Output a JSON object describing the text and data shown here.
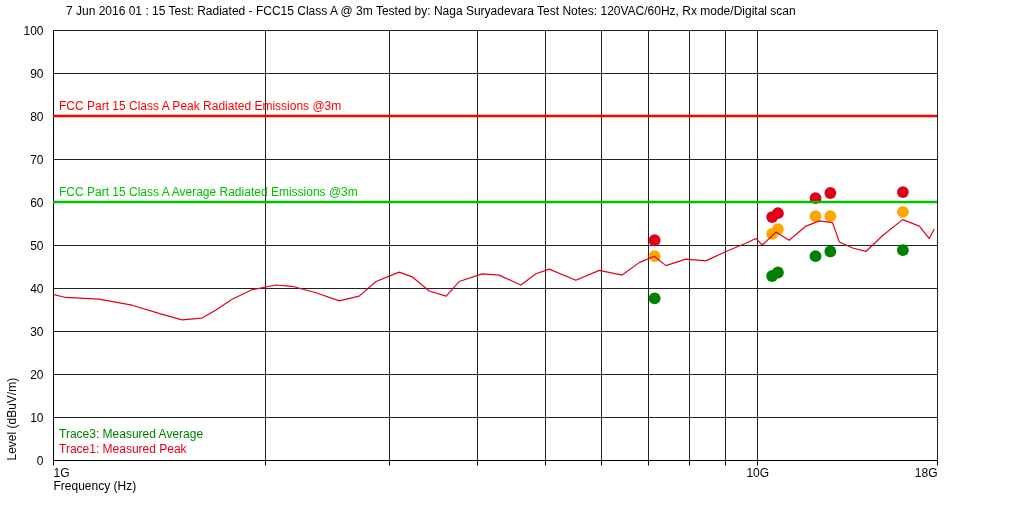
{
  "chart_data": {
    "type": "line",
    "title": "7 Jun 2016   01 : 15   Test: Radiated - FCC15 Class A @ 3m   Tested by: Naga Suryadevara   Test Notes: 120VAC/60Hz, Rx mode/Digital scan",
    "xlabel": "Frequency (Hz)",
    "ylabel": "Level (dBuV/m)",
    "log": "x",
    "xlim": [
      1,
      18
    ],
    "xticks": [
      {
        "value": 1,
        "label": "1G"
      },
      {
        "value": 2,
        "label": null
      },
      {
        "value": 3,
        "label": null
      },
      {
        "value": 4,
        "label": null
      },
      {
        "value": 5,
        "label": null
      },
      {
        "value": 6,
        "label": null
      },
      {
        "value": 7,
        "label": null
      },
      {
        "value": 8,
        "label": null
      },
      {
        "value": 9,
        "label": null
      },
      {
        "value": 10,
        "label": "10G"
      },
      {
        "value": 18,
        "label": "18G"
      }
    ],
    "ylim": [
      0,
      100
    ],
    "yticks": [
      0,
      10,
      20,
      30,
      40,
      50,
      60,
      70,
      80,
      90,
      100
    ],
    "grid": true,
    "legend": "bottom left",
    "ref_lines": [
      {
        "axis": "y",
        "value": 80,
        "label": "FCC Part 15 Class A Peak Radiated Emissions @3m",
        "color": "#ff0000"
      },
      {
        "axis": "y",
        "value": 60,
        "label": "FCC Part 15 Class A Average Radiated Emissions @3m",
        "color": "#00c000"
      }
    ],
    "series": [
      {
        "name": "Trace1: Measured Peak",
        "color": "#e0001b",
        "x": [
          1,
          1.042,
          1.162,
          1.295,
          1.414,
          1.525,
          1.628,
          1.704,
          1.796,
          1.917,
          2.074,
          2.185,
          2.363,
          2.549,
          2.721,
          2.876,
          3.101,
          3.236,
          3.421,
          3.616,
          3.773,
          4.069,
          4.3,
          4.617,
          4.851,
          5.065,
          5.527,
          5.966,
          6.431,
          6.798,
          7.141,
          7.419,
          7.919,
          8.455,
          9.028,
          9.636,
          9.958,
          10.17,
          10.63,
          11.1,
          11.73,
          12.25,
          12.79,
          13.08,
          13.66,
          14.27,
          15.07,
          16.09,
          16.99,
          17.55,
          17.84
        ],
        "values": [
          38.5,
          37.8,
          37.4,
          36,
          34.1,
          32.6,
          33,
          34.9,
          37.4,
          39.6,
          40.7,
          40.4,
          38.9,
          37,
          38.1,
          41.5,
          43.7,
          42.6,
          39.3,
          38.1,
          41.5,
          43.3,
          43,
          40.7,
          43.3,
          44.4,
          41.8,
          44.1,
          43,
          45.9,
          47.4,
          45.2,
          46.7,
          46.3,
          48.5,
          50.4,
          51.5,
          50,
          53,
          51.1,
          54.4,
          55.6,
          55.2,
          50.7,
          49.3,
          48.5,
          52.2,
          55.9,
          54.4,
          51.5,
          53.7
        ]
      },
      {
        "name": "Trace3: Measured Average",
        "type": "scatter",
        "marker": "circle",
        "color": "#008000",
        "x": [
          7.15,
          10.5,
          10.7,
          12.1,
          12.7,
          16.1
        ],
        "values": [
          37.6,
          42.8,
          43.6,
          47.4,
          48.5,
          48.8
        ]
      },
      {
        "type": "scatter",
        "marker": "circle",
        "color": "#e0001b",
        "x": [
          7.15,
          10.5,
          10.7,
          12.1,
          12.7,
          16.1
        ],
        "values": [
          51.1,
          56.5,
          57.4,
          60.9,
          62.1,
          62.3
        ]
      },
      {
        "type": "scatter",
        "marker": "circle",
        "color": "#ffa500",
        "x": [
          7.15,
          10.5,
          10.7,
          12.1,
          12.7,
          16.1
        ],
        "values": [
          47.4,
          52.6,
          53.7,
          56.7,
          56.7,
          57.7
        ]
      }
    ]
  }
}
